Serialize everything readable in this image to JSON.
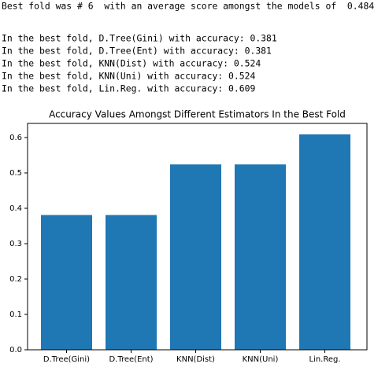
{
  "output_lines": [
    "Best fold was # 6  with an average score amongst the models of  0.484",
    "In the best fold, D.Tree(Gini) with accuracy: 0.381",
    "In the best fold, D.Tree(Ent) with accuracy: 0.381",
    "In the best fold, KNN(Dist) with accuracy: 0.524",
    "In the best fold, KNN(Uni) with accuracy: 0.524",
    "In the best fold, Lin.Reg. with accuracy: 0.609"
  ],
  "chart_data": {
    "type": "bar",
    "title": "Accuracy Values Amongst Different Estimators In the Best Fold",
    "categories": [
      "D.Tree(Gini)",
      "D.Tree(Ent)",
      "KNN(Dist)",
      "KNN(Uni)",
      "Lin.Reg."
    ],
    "values": [
      0.381,
      0.381,
      0.524,
      0.524,
      0.609
    ],
    "color": "#1f77b4",
    "ylim": [
      0,
      0.64
    ],
    "yticks": [
      {
        "value": 0,
        "label": "0.0"
      },
      0.1,
      0.2,
      0.3,
      0.4,
      0.5,
      0.6
    ],
    "grid": false
  }
}
